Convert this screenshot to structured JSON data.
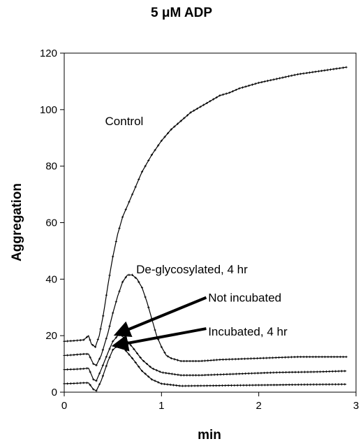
{
  "chart_data": {
    "type": "line",
    "title": "5 μM ADP",
    "xlabel": "min",
    "ylabel": "Aggregation",
    "xlim": [
      0,
      3
    ],
    "ylim": [
      0,
      120
    ],
    "x_ticks": [
      0,
      1,
      2,
      3
    ],
    "y_ticks": [
      0,
      20,
      40,
      60,
      80,
      100,
      120
    ],
    "grid": false,
    "legend": "none",
    "series": [
      {
        "name": "Control",
        "color": "#000000",
        "points": [
          [
            0,
            18
          ],
          [
            0.1,
            18.2
          ],
          [
            0.2,
            18.5
          ],
          [
            0.25,
            20
          ],
          [
            0.28,
            17
          ],
          [
            0.32,
            16
          ],
          [
            0.36,
            20
          ],
          [
            0.4,
            27
          ],
          [
            0.45,
            38
          ],
          [
            0.5,
            48
          ],
          [
            0.55,
            56
          ],
          [
            0.6,
            62
          ],
          [
            0.7,
            70
          ],
          [
            0.8,
            78
          ],
          [
            0.9,
            84
          ],
          [
            1.0,
            89
          ],
          [
            1.1,
            93
          ],
          [
            1.2,
            96
          ],
          [
            1.3,
            99
          ],
          [
            1.4,
            101
          ],
          [
            1.5,
            103
          ],
          [
            1.6,
            105
          ],
          [
            1.7,
            106
          ],
          [
            1.8,
            107.5
          ],
          [
            1.9,
            108.5
          ],
          [
            2.0,
            109.5
          ],
          [
            2.2,
            111
          ],
          [
            2.4,
            112.5
          ],
          [
            2.6,
            113.5
          ],
          [
            2.8,
            114.5
          ],
          [
            2.9,
            115
          ]
        ]
      },
      {
        "name": "De-glycosylated, 4 hr",
        "color": "#000000",
        "points": [
          [
            0,
            13
          ],
          [
            0.1,
            13.2
          ],
          [
            0.2,
            13.5
          ],
          [
            0.25,
            13.5
          ],
          [
            0.3,
            10
          ],
          [
            0.33,
            9.5
          ],
          [
            0.38,
            13
          ],
          [
            0.45,
            21
          ],
          [
            0.5,
            28
          ],
          [
            0.55,
            34
          ],
          [
            0.6,
            39
          ],
          [
            0.65,
            41.5
          ],
          [
            0.7,
            41.5
          ],
          [
            0.75,
            40
          ],
          [
            0.8,
            37
          ],
          [
            0.85,
            32
          ],
          [
            0.9,
            26
          ],
          [
            0.95,
            20
          ],
          [
            1.0,
            16
          ],
          [
            1.05,
            13
          ],
          [
            1.1,
            12
          ],
          [
            1.2,
            11
          ],
          [
            1.4,
            11
          ],
          [
            1.6,
            11.5
          ],
          [
            2.0,
            12
          ],
          [
            2.4,
            12.5
          ],
          [
            2.9,
            12.5
          ]
        ]
      },
      {
        "name": "Not incubated",
        "color": "#000000",
        "points": [
          [
            0,
            8
          ],
          [
            0.1,
            8.1
          ],
          [
            0.2,
            8.3
          ],
          [
            0.25,
            8.5
          ],
          [
            0.3,
            4.5
          ],
          [
            0.33,
            4
          ],
          [
            0.38,
            8
          ],
          [
            0.45,
            14
          ],
          [
            0.5,
            18
          ],
          [
            0.55,
            20
          ],
          [
            0.58,
            20.5
          ],
          [
            0.62,
            19
          ],
          [
            0.7,
            16
          ],
          [
            0.8,
            11.5
          ],
          [
            0.9,
            8.5
          ],
          [
            1.0,
            7
          ],
          [
            1.2,
            6
          ],
          [
            1.4,
            6
          ],
          [
            1.8,
            6.5
          ],
          [
            2.2,
            7
          ],
          [
            2.6,
            7.2
          ],
          [
            2.9,
            7.5
          ]
        ]
      },
      {
        "name": "Incubated, 4 hr",
        "color": "#000000",
        "points": [
          [
            0,
            3
          ],
          [
            0.1,
            3.1
          ],
          [
            0.2,
            3.3
          ],
          [
            0.25,
            3.3
          ],
          [
            0.3,
            1
          ],
          [
            0.33,
            0.5
          ],
          [
            0.38,
            4
          ],
          [
            0.45,
            11
          ],
          [
            0.5,
            15
          ],
          [
            0.55,
            16.5
          ],
          [
            0.6,
            16
          ],
          [
            0.7,
            12
          ],
          [
            0.8,
            7.5
          ],
          [
            0.9,
            4.5
          ],
          [
            1.0,
            3
          ],
          [
            1.2,
            2.2
          ],
          [
            1.5,
            2.3
          ],
          [
            2.0,
            2.5
          ],
          [
            2.5,
            2.7
          ],
          [
            2.9,
            2.8
          ]
        ]
      }
    ],
    "annotations": [
      {
        "text": "Control",
        "x": 0.42,
        "y": 96,
        "anchor": "start"
      },
      {
        "text": "De-glycosylated, 4 hr",
        "x": 0.74,
        "y": 43.5,
        "anchor": "start"
      },
      {
        "text": "Not incubated",
        "x": 1.48,
        "y": 33.5,
        "anchor": "start",
        "arrow_from": [
          1.46,
          33.5
        ],
        "arrow_to": [
          0.54,
          20.5
        ]
      },
      {
        "text": "Incubated, 4 hr",
        "x": 1.48,
        "y": 21.5,
        "anchor": "start",
        "arrow_from": [
          1.46,
          22.5
        ],
        "arrow_to": [
          0.52,
          16.5
        ]
      }
    ]
  }
}
